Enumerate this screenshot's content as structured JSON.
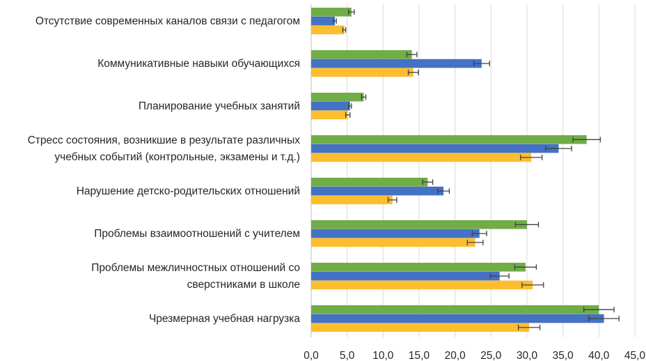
{
  "chart_data": {
    "type": "bar",
    "orientation": "horizontal",
    "categories": [
      [
        "Отсутствие современных каналов связи с педагогом"
      ],
      [
        "Коммуникативные навыки обучающихся"
      ],
      [
        "Планирование учебных занятий"
      ],
      [
        "Стресс состояния, возникшие в результате различных",
        "учебных событий (контрольные, экзамены и т.д.)"
      ],
      [
        "Нарушение детско-родительских отношений"
      ],
      [
        "Проблемы взаимоотношений с учителем"
      ],
      [
        "Проблемы межличностных отношений со",
        "сверстниками в школе"
      ],
      [
        "Чрезмерная учебная нагрузка"
      ]
    ],
    "series": [
      {
        "name": "series-green",
        "color": "#70ad47",
        "values": [
          5.6,
          14.0,
          7.3,
          38.3,
          16.2,
          30.0,
          29.8,
          40.0
        ],
        "errors": [
          0.4,
          0.7,
          0.3,
          1.9,
          0.7,
          1.6,
          1.5,
          2.1
        ]
      },
      {
        "name": "series-blue",
        "color": "#4472c4",
        "values": [
          3.3,
          23.7,
          5.4,
          34.4,
          18.4,
          23.4,
          26.2,
          40.7
        ],
        "errors": [
          0.2,
          1.1,
          0.2,
          1.8,
          0.8,
          1.0,
          1.3,
          2.1
        ]
      },
      {
        "name": "series-yellow",
        "color": "#fbbe2e",
        "values": [
          4.6,
          14.2,
          5.1,
          30.6,
          11.3,
          22.8,
          30.8,
          30.3
        ],
        "errors": [
          0.2,
          0.7,
          0.3,
          1.5,
          0.6,
          1.1,
          1.5,
          1.5
        ]
      }
    ],
    "xlim": [
      0,
      45
    ],
    "x_ticks": [
      "0,0",
      "5,0",
      "10,0",
      "15,0",
      "20,0",
      "25,0",
      "30,0",
      "35,0",
      "40,0",
      "45,0"
    ],
    "grid": true,
    "legend": "none",
    "title": "",
    "xlabel": "",
    "ylabel": ""
  }
}
